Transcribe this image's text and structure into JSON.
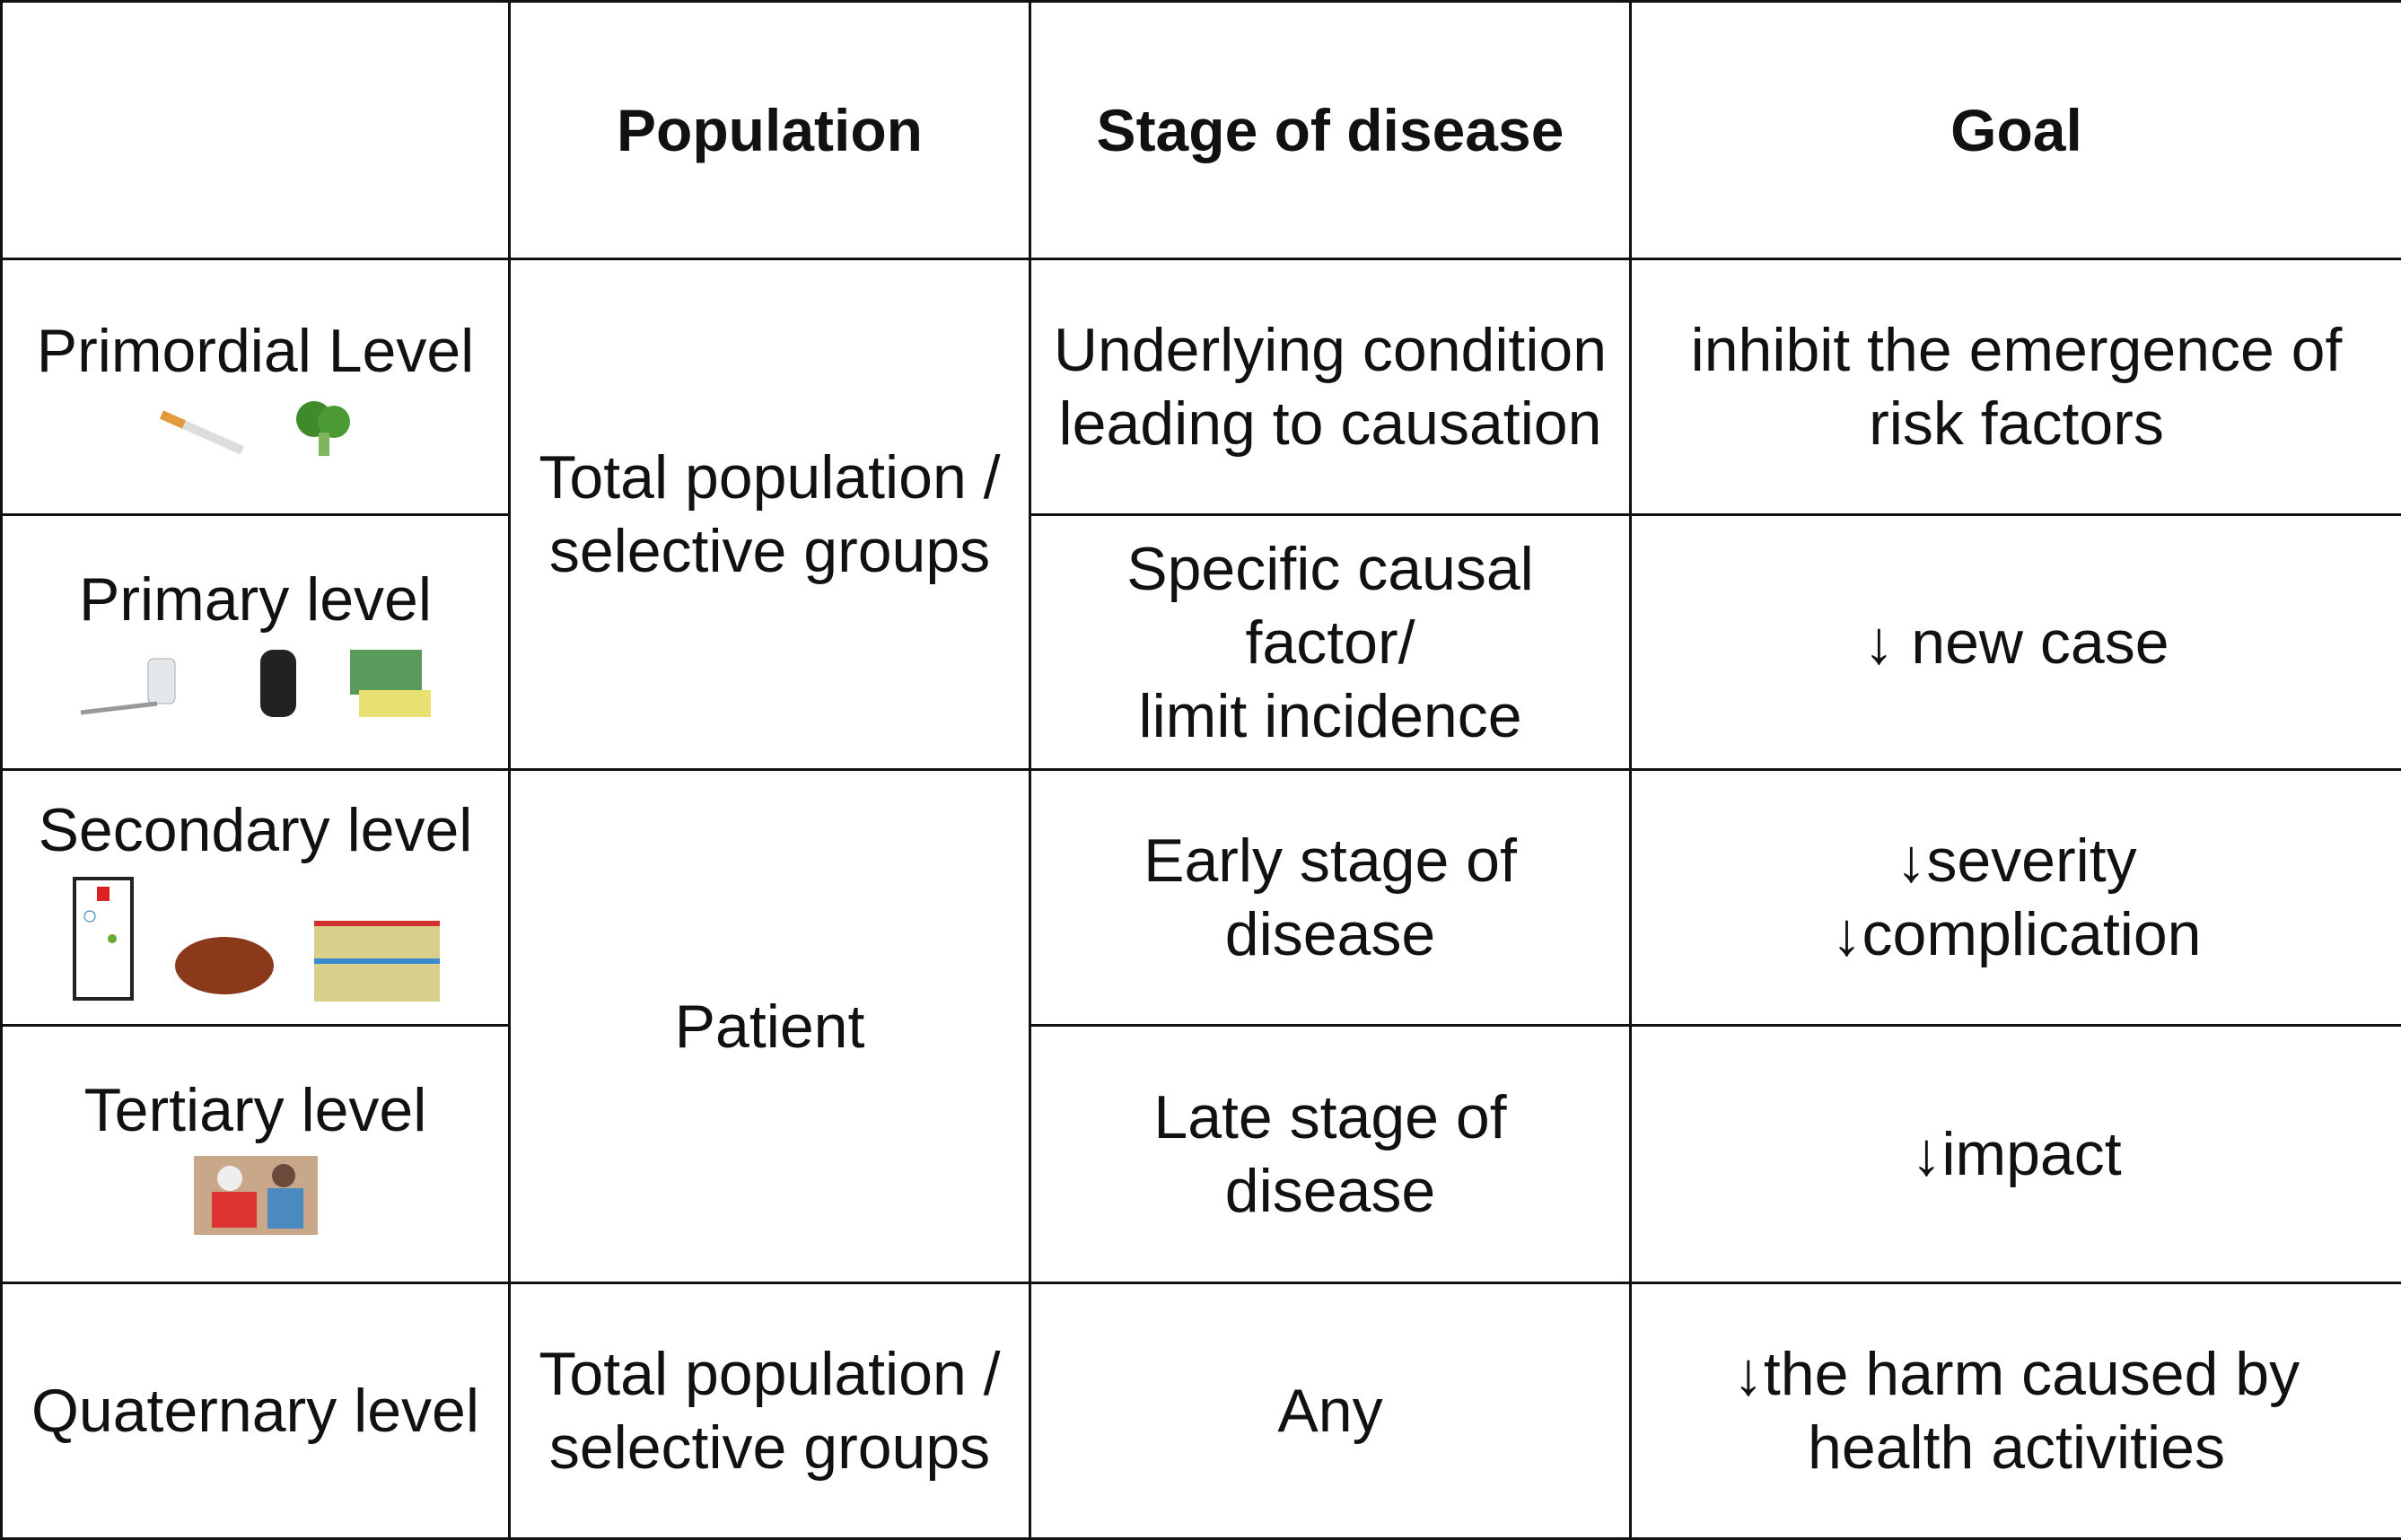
{
  "table": {
    "header": [
      "Population",
      "Stage of disease",
      "Goal"
    ],
    "population_groups": [
      "Total population /\nselective groups",
      "Patient",
      "Total population /\nselective groups"
    ],
    "rows": [
      {
        "level": "Primordial Level",
        "stage": "Underlying condition\nleading to causation",
        "goal": "inhibit the emergence of\nrisk factors"
      },
      {
        "level": "Primary level",
        "stage": "Specific causal\nfactor/\nlimit incidence",
        "goal": "↓ new case"
      },
      {
        "level": "Secondary level",
        "stage": "Early stage of\ndisease",
        "goal": "↓severity\n↓complication"
      },
      {
        "level": "Tertiary level",
        "stage": "Late stage of\ndisease",
        "goal": "↓impact"
      },
      {
        "level": "Quaternary level",
        "stage": "Any",
        "goal": "↓the harm caused by\nhealth activities"
      }
    ]
  }
}
